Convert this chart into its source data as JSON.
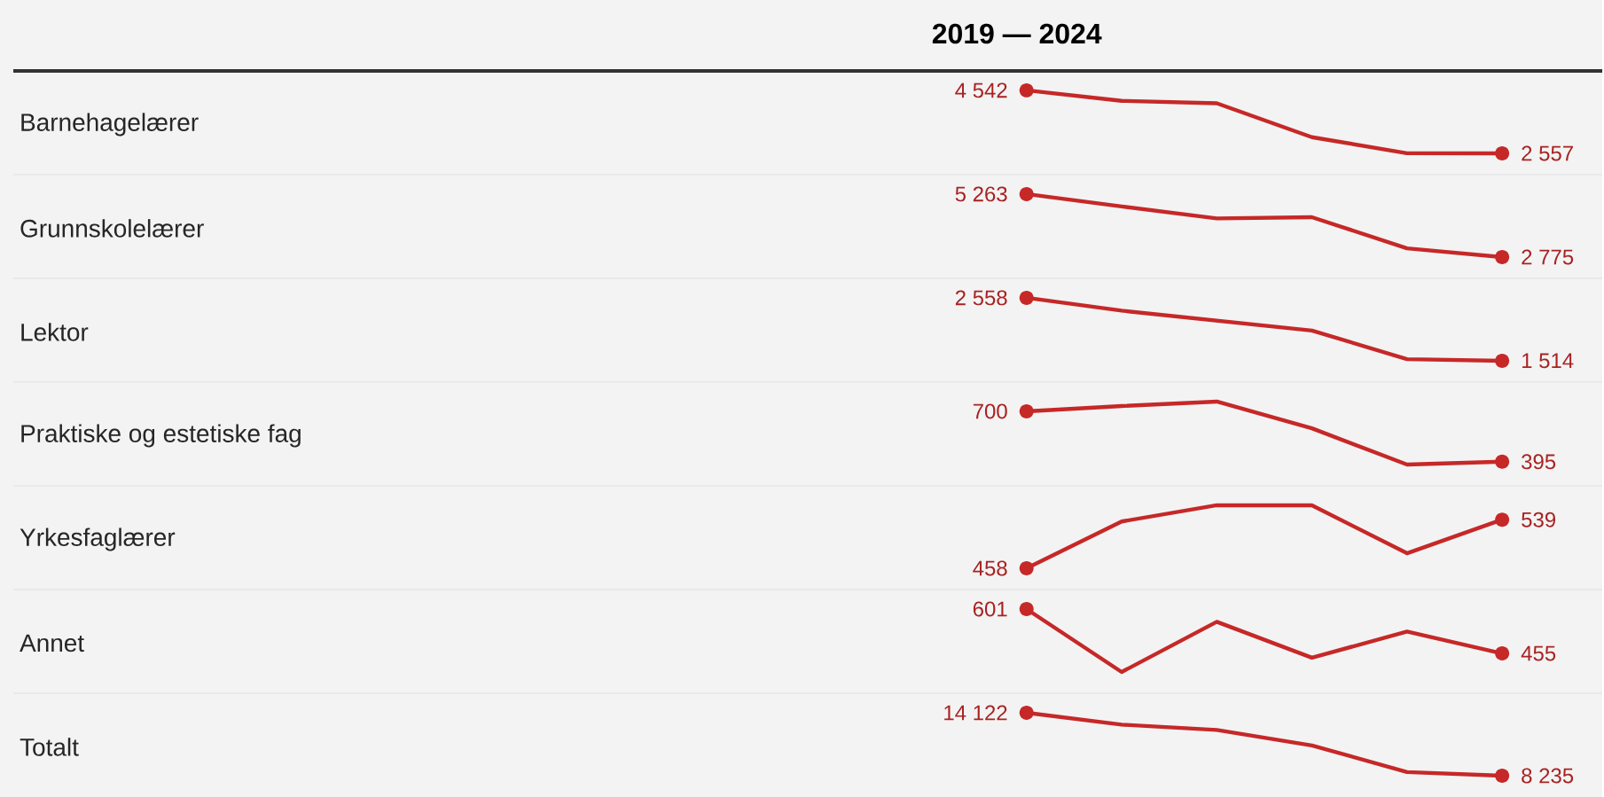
{
  "chart_data": [
    {
      "type": "line",
      "title": "2019 — 2024",
      "ylabel": "Barnehagelærer",
      "categories": [
        null,
        null,
        null,
        null,
        null,
        null
      ],
      "values": [
        4542,
        4211,
        4135,
        3066,
        2560,
        2557
      ],
      "value_labels": [
        "4 542",
        null,
        null,
        null,
        null,
        "2 557"
      ],
      "color": "#c62828"
    },
    {
      "type": "line",
      "ylabel": "Grunnskolelærer",
      "categories": [
        null,
        null,
        null,
        null,
        null,
        null
      ],
      "values": [
        5263,
        4775,
        4302,
        4350,
        3121,
        2775
      ],
      "value_labels": [
        "5 263",
        null,
        null,
        null,
        null,
        "2 775"
      ],
      "color": "#c62828"
    },
    {
      "type": "line",
      "ylabel": "Lektor",
      "categories": [
        null,
        null,
        null,
        null,
        null,
        null
      ],
      "values": [
        2558,
        2345,
        2180,
        2015,
        1541,
        1514
      ],
      "value_labels": [
        "2 558",
        null,
        null,
        null,
        null,
        "1 514"
      ],
      "color": "#c62828"
    },
    {
      "type": "line",
      "ylabel": "Praktiske og estetiske fag",
      "categories": [
        null,
        null,
        null,
        null,
        null,
        null
      ],
      "values": [
        700,
        732,
        759,
        597,
        378,
        395
      ],
      "value_labels": [
        "700",
        null,
        null,
        null,
        null,
        "395"
      ],
      "color": "#c62828"
    },
    {
      "type": "line",
      "ylabel": "Yrkesfaglærer",
      "categories": [
        null,
        null,
        null,
        null,
        null,
        null
      ],
      "values": [
        458,
        536,
        563,
        563,
        483,
        539
      ],
      "value_labels": [
        "458",
        null,
        null,
        null,
        null,
        "539"
      ],
      "color": "#c62828"
    },
    {
      "type": "line",
      "ylabel": "Annet",
      "categories": [
        null,
        null,
        null,
        null,
        null,
        null
      ],
      "values": [
        601,
        394,
        559,
        441,
        527,
        455
      ],
      "value_labels": [
        "601",
        null,
        null,
        null,
        null,
        "455"
      ],
      "color": "#c62828"
    },
    {
      "type": "line",
      "ylabel": "Totalt",
      "categories": [
        null,
        null,
        null,
        null,
        null,
        null
      ],
      "values": [
        14122,
        13014,
        12518,
        11066,
        8583,
        8235
      ],
      "value_labels": [
        "14 122",
        null,
        null,
        null,
        null,
        "8 235"
      ],
      "color": "#c62828"
    }
  ]
}
